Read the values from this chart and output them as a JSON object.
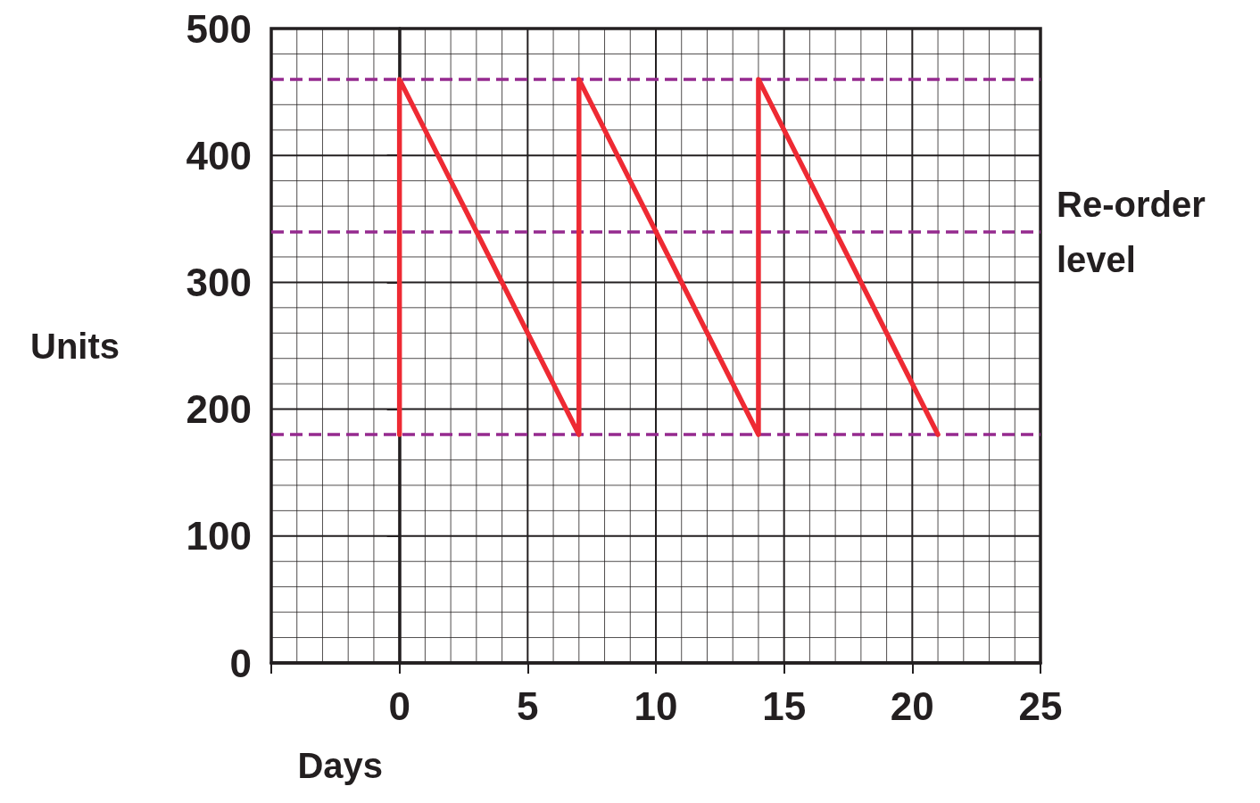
{
  "chart_data": {
    "type": "line",
    "xlabel": "Days",
    "ylabel": "Units",
    "series": [
      {
        "color": "#ee2a33",
        "x": [
          0,
          0,
          7,
          7,
          14,
          14,
          21
        ],
        "values": [
          180,
          460,
          180,
          460,
          180,
          460,
          180
        ]
      }
    ],
    "xlim": [
      -5,
      25
    ],
    "xticks": [
      {
        "value": -5,
        "label": null
      },
      {
        "value": -4,
        "label": null
      },
      {
        "value": -3,
        "label": null
      },
      {
        "value": -2,
        "label": null
      },
      {
        "value": -1,
        "label": null
      },
      0,
      {
        "value": 1,
        "label": null
      },
      {
        "value": 2,
        "label": null
      },
      {
        "value": 3,
        "label": null
      },
      {
        "value": 4,
        "label": null
      },
      5,
      {
        "value": 6,
        "label": null
      },
      {
        "value": 7,
        "label": null
      },
      {
        "value": 8,
        "label": null
      },
      {
        "value": 9,
        "label": null
      },
      10,
      {
        "value": 11,
        "label": null
      },
      {
        "value": 12,
        "label": null
      },
      {
        "value": 13,
        "label": null
      },
      {
        "value": 14,
        "label": null
      },
      15,
      {
        "value": 16,
        "label": null
      },
      {
        "value": 17,
        "label": null
      },
      {
        "value": 18,
        "label": null
      },
      {
        "value": 19,
        "label": null
      },
      20,
      {
        "value": 21,
        "label": null
      },
      {
        "value": 22,
        "label": null
      },
      {
        "value": 23,
        "label": null
      },
      {
        "value": 24,
        "label": null
      },
      25
    ],
    "ylim": [
      0,
      500
    ],
    "yticks": [
      0,
      {
        "value": 20,
        "label": null
      },
      {
        "value": 40,
        "label": null
      },
      {
        "value": 60,
        "label": null
      },
      {
        "value": 80,
        "label": null
      },
      100,
      {
        "value": 120,
        "label": null
      },
      {
        "value": 140,
        "label": null
      },
      {
        "value": 160,
        "label": null
      },
      200,
      {
        "value": 220,
        "label": null
      },
      {
        "value": 240,
        "label": null
      },
      {
        "value": 260,
        "label": null
      },
      {
        "value": 280,
        "label": null
      },
      300,
      {
        "value": 320,
        "label": null
      },
      {
        "value": 360,
        "label": null
      },
      {
        "value": 380,
        "label": null
      },
      400,
      {
        "value": 420,
        "label": null
      },
      {
        "value": 440,
        "label": null
      },
      {
        "value": 480,
        "label": null
      },
      500
    ],
    "ref_lines": [
      {
        "axis": "y",
        "value": 460,
        "color": "#952a8f",
        "line_style": "dashed"
      },
      {
        "axis": "y",
        "value": 340,
        "label": "Re-order\nlevel",
        "color": "#952a8f",
        "line_style": "dashed"
      },
      {
        "axis": "y",
        "value": 180,
        "color": "#952a8f",
        "line_style": "dashed"
      }
    ],
    "grid": true,
    "marker": "none",
    "line_style": "solid"
  }
}
